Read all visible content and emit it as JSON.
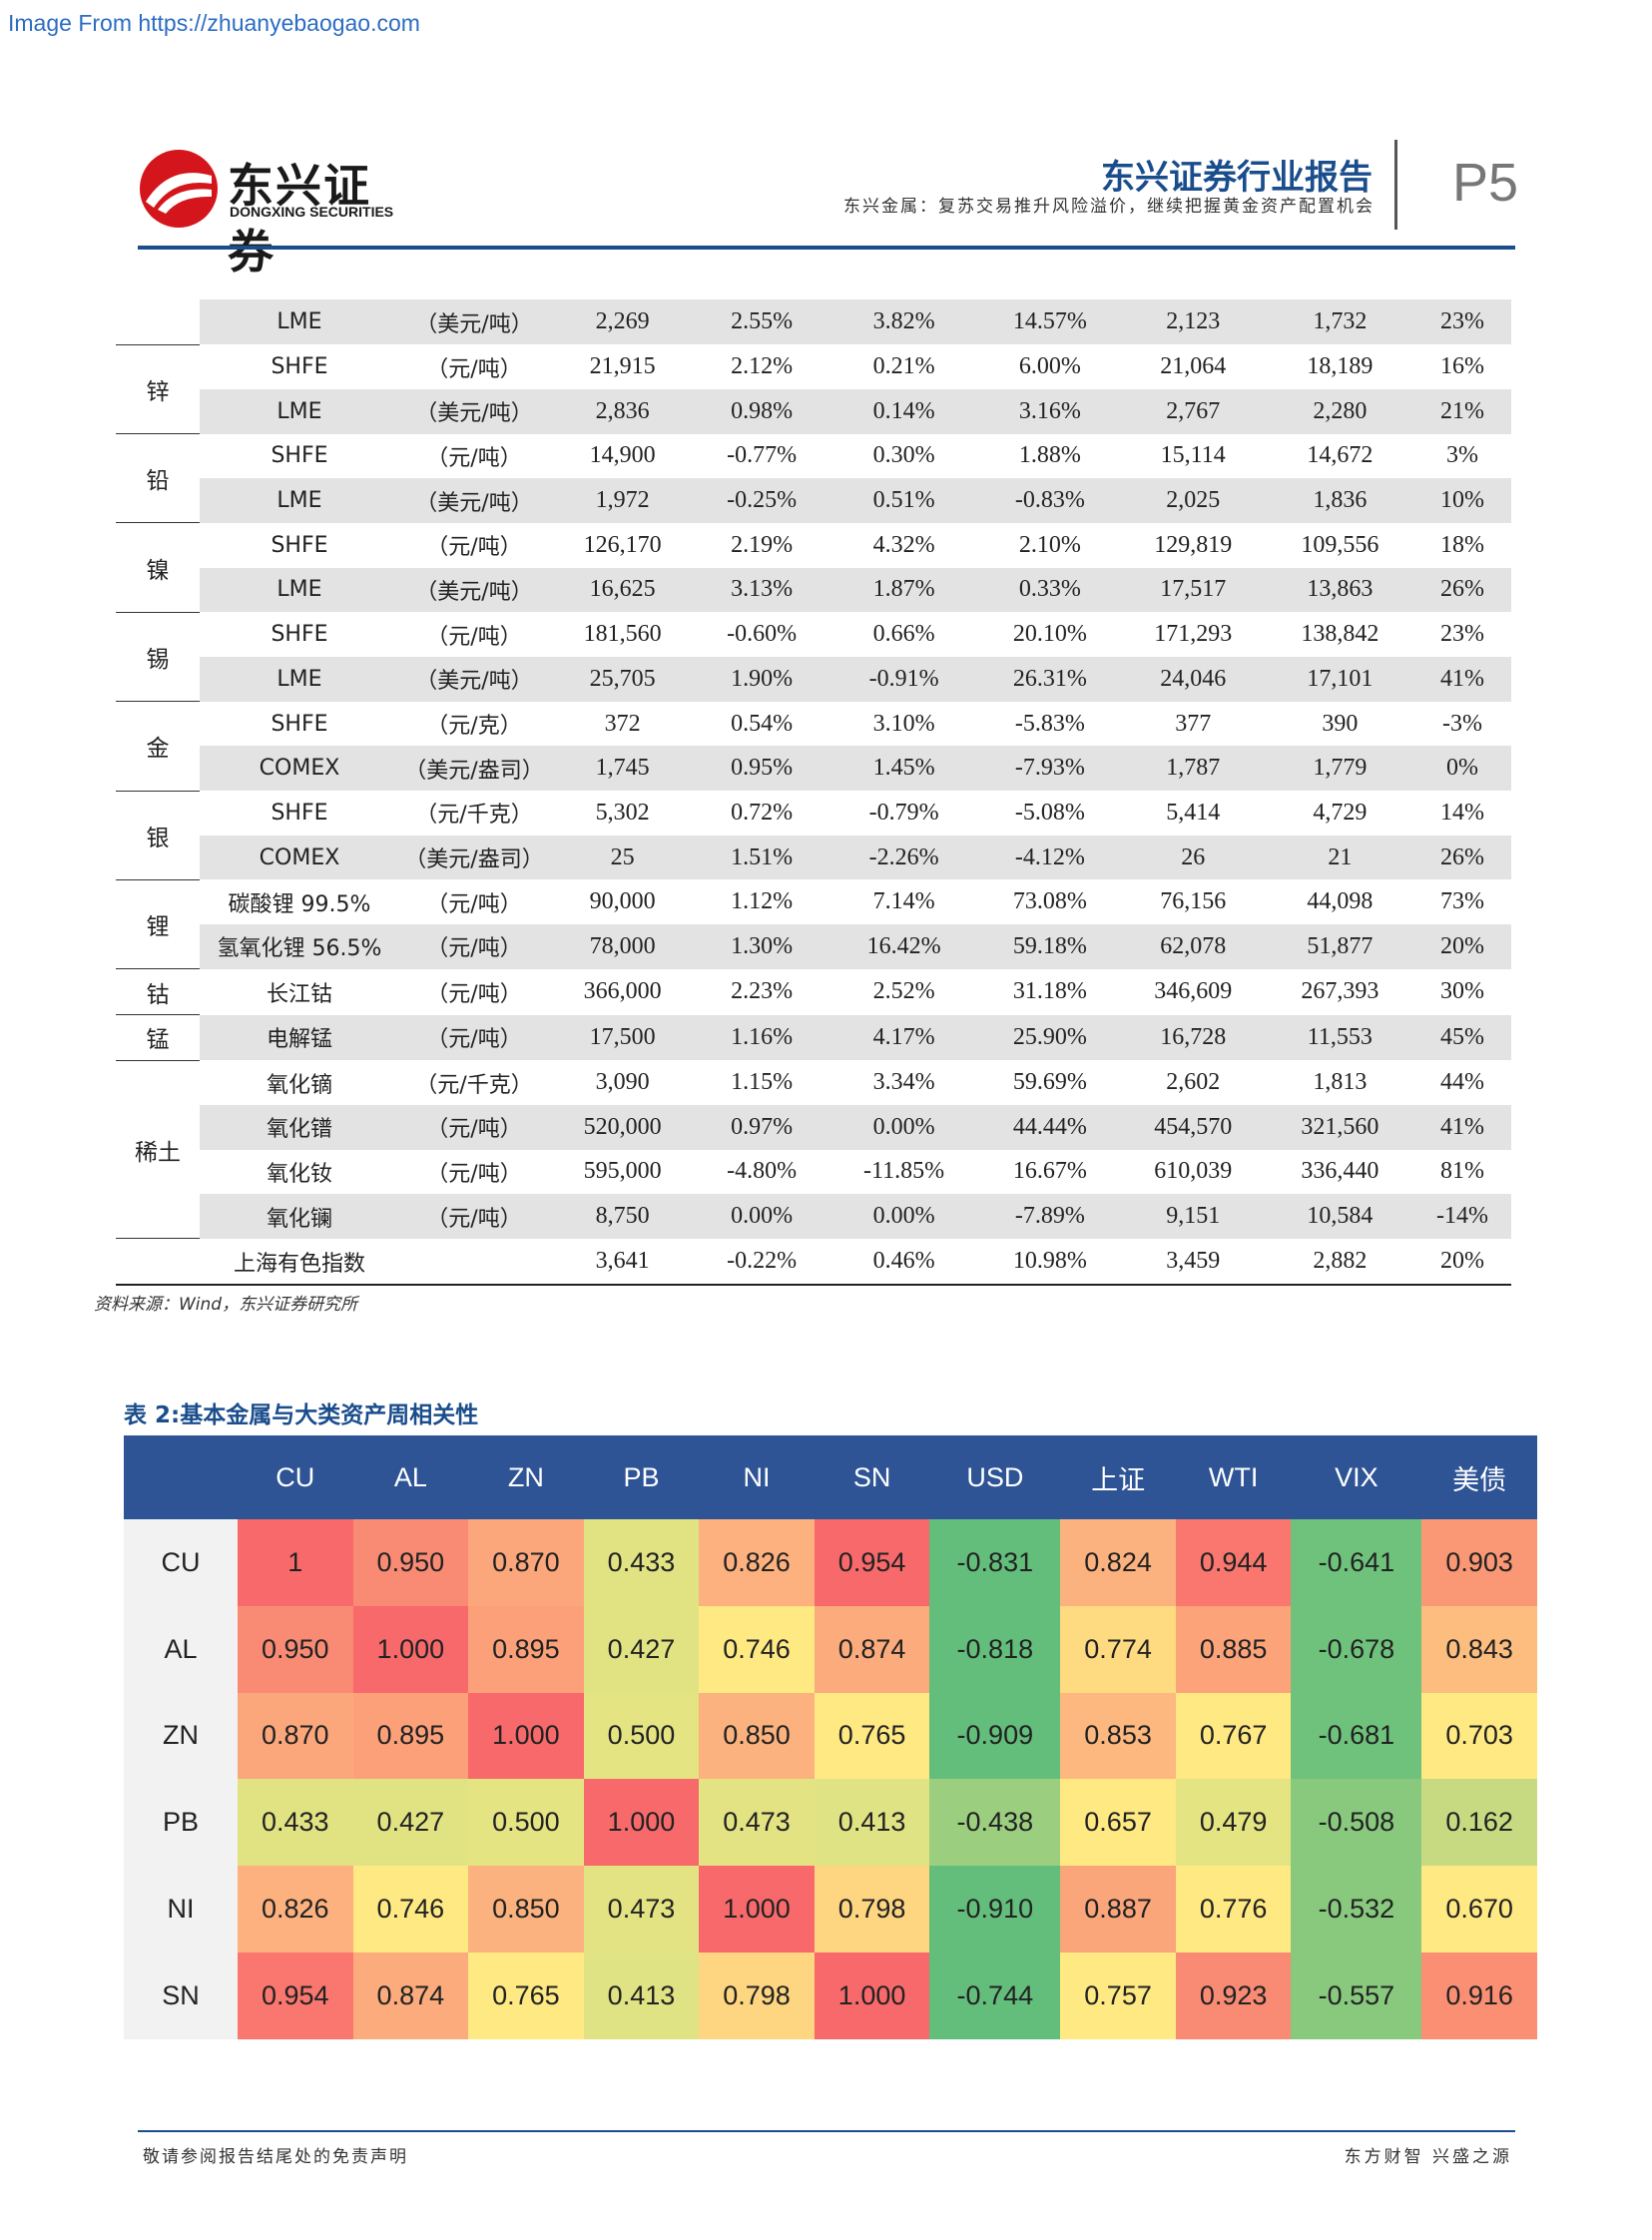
{
  "watermark": "Image From https://zhuanyebaogao.com",
  "header": {
    "logo_cn": "东兴证券",
    "logo_en": "DONGXING SECURITIES",
    "report_title": "东兴证券行业报告",
    "report_subtitle": "东兴金属：复苏交易推升风险溢价，继续把握黄金资产配置机会",
    "page_number": "P5"
  },
  "table1": {
    "groups": [
      {
        "metal": "",
        "rows": [
          [
            "LME",
            "（美元/吨）",
            "2,269",
            "2.55%",
            "3.82%",
            "14.57%",
            "2,123",
            "1,732",
            "23%"
          ]
        ]
      },
      {
        "metal": "锌",
        "rows": [
          [
            "SHFE",
            "（元/吨）",
            "21,915",
            "2.12%",
            "0.21%",
            "6.00%",
            "21,064",
            "18,189",
            "16%"
          ],
          [
            "LME",
            "（美元/吨）",
            "2,836",
            "0.98%",
            "0.14%",
            "3.16%",
            "2,767",
            "2,280",
            "21%"
          ]
        ]
      },
      {
        "metal": "铅",
        "rows": [
          [
            "SHFE",
            "（元/吨）",
            "14,900",
            "-0.77%",
            "0.30%",
            "1.88%",
            "15,114",
            "14,672",
            "3%"
          ],
          [
            "LME",
            "（美元/吨）",
            "1,972",
            "-0.25%",
            "0.51%",
            "-0.83%",
            "2,025",
            "1,836",
            "10%"
          ]
        ]
      },
      {
        "metal": "镍",
        "rows": [
          [
            "SHFE",
            "（元/吨）",
            "126,170",
            "2.19%",
            "4.32%",
            "2.10%",
            "129,819",
            "109,556",
            "18%"
          ],
          [
            "LME",
            "（美元/吨）",
            "16,625",
            "3.13%",
            "1.87%",
            "0.33%",
            "17,517",
            "13,863",
            "26%"
          ]
        ]
      },
      {
        "metal": "锡",
        "rows": [
          [
            "SHFE",
            "（元/吨）",
            "181,560",
            "-0.60%",
            "0.66%",
            "20.10%",
            "171,293",
            "138,842",
            "23%"
          ],
          [
            "LME",
            "（美元/吨）",
            "25,705",
            "1.90%",
            "-0.91%",
            "26.31%",
            "24,046",
            "17,101",
            "41%"
          ]
        ]
      },
      {
        "metal": "金",
        "rows": [
          [
            "SHFE",
            "（元/克）",
            "372",
            "0.54%",
            "3.10%",
            "-5.83%",
            "377",
            "390",
            "-3%"
          ],
          [
            "COMEX",
            "（美元/盎司）",
            "1,745",
            "0.95%",
            "1.45%",
            "-7.93%",
            "1,787",
            "1,779",
            "0%"
          ]
        ]
      },
      {
        "metal": "银",
        "rows": [
          [
            "SHFE",
            "（元/千克）",
            "5,302",
            "0.72%",
            "-0.79%",
            "-5.08%",
            "5,414",
            "4,729",
            "14%"
          ],
          [
            "COMEX",
            "（美元/盎司）",
            "25",
            "1.51%",
            "-2.26%",
            "-4.12%",
            "26",
            "21",
            "26%"
          ]
        ]
      },
      {
        "metal": "锂",
        "rows": [
          [
            "碳酸锂 99.5%",
            "（元/吨）",
            "90,000",
            "1.12%",
            "7.14%",
            "73.08%",
            "76,156",
            "44,098",
            "73%"
          ],
          [
            "氢氧化锂 56.5%",
            "（元/吨）",
            "78,000",
            "1.30%",
            "16.42%",
            "59.18%",
            "62,078",
            "51,877",
            "20%"
          ]
        ]
      },
      {
        "metal": "钴",
        "rows": [
          [
            "长江钴",
            "（元/吨）",
            "366,000",
            "2.23%",
            "2.52%",
            "31.18%",
            "346,609",
            "267,393",
            "30%"
          ]
        ]
      },
      {
        "metal": "锰",
        "rows": [
          [
            "电解锰",
            "（元/吨）",
            "17,500",
            "1.16%",
            "4.17%",
            "25.90%",
            "16,728",
            "11,553",
            "45%"
          ]
        ]
      },
      {
        "metal": "稀土",
        "rows": [
          [
            "氧化镝",
            "（元/千克）",
            "3,090",
            "1.15%",
            "3.34%",
            "59.69%",
            "2,602",
            "1,813",
            "44%"
          ],
          [
            "氧化镨",
            "（元/吨）",
            "520,000",
            "0.97%",
            "0.00%",
            "44.44%",
            "454,570",
            "321,560",
            "41%"
          ],
          [
            "氧化钕",
            "（元/吨）",
            "595,000",
            "-4.80%",
            "-11.85%",
            "16.67%",
            "610,039",
            "336,440",
            "81%"
          ],
          [
            "氧化镧",
            "（元/吨）",
            "8,750",
            "0.00%",
            "0.00%",
            "-7.89%",
            "9,151",
            "10,584",
            "-14%"
          ]
        ]
      }
    ],
    "index_row": [
      "上海有色指数",
      "",
      "3,641",
      "-0.22%",
      "0.46%",
      "10.98%",
      "3,459",
      "2,882",
      "20%"
    ],
    "source": "资料来源：Wind，东兴证券研究所"
  },
  "table2": {
    "title": "表 2:基本金属与大类资产周相关性",
    "columns": [
      "CU",
      "AL",
      "ZN",
      "PB",
      "NI",
      "SN",
      "USD",
      "上证",
      "WTI",
      "VIX",
      "美债"
    ],
    "rows": [
      {
        "label": "CU",
        "values": [
          "1",
          "0.950",
          "0.870",
          "0.433",
          "0.826",
          "0.954",
          "-0.831",
          "0.824",
          "0.944",
          "-0.641",
          "0.903"
        ],
        "colors": [
          "#f8696b",
          "#f98b74",
          "#fba77b",
          "#e1e383",
          "#fcb17e",
          "#f8696b",
          "#63be7b",
          "#fcb27e",
          "#f9776e",
          "#6fc27c",
          "#fa9774"
        ]
      },
      {
        "label": "AL",
        "values": [
          "0.950",
          "1.000",
          "0.895",
          "0.427",
          "0.746",
          "0.874",
          "-0.818",
          "0.774",
          "0.885",
          "-0.678",
          "0.843"
        ],
        "colors": [
          "#f98b74",
          "#f8696b",
          "#fca07a",
          "#e1e383",
          "#fee983",
          "#fbab7c",
          "#63be7b",
          "#feda81",
          "#fca37a",
          "#6fc27c",
          "#fcbd7f"
        ]
      },
      {
        "label": "ZN",
        "values": [
          "0.870",
          "0.895",
          "1.000",
          "0.500",
          "0.850",
          "0.765",
          "-0.909",
          "0.853",
          "0.767",
          "-0.681",
          "0.703"
        ],
        "colors": [
          "#fba77b",
          "#fca07a",
          "#f8696b",
          "#e5e483",
          "#fcb27e",
          "#fee983",
          "#63be7b",
          "#fcb87f",
          "#fee983",
          "#6fc27c",
          "#fee983"
        ]
      },
      {
        "label": "PB",
        "values": [
          "0.433",
          "0.427",
          "0.500",
          "1.000",
          "0.473",
          "0.413",
          "-0.438",
          "0.657",
          "0.479",
          "-0.508",
          "0.162"
        ],
        "colors": [
          "#e1e383",
          "#e1e383",
          "#e5e483",
          "#f8696b",
          "#e3e383",
          "#e0e383",
          "#9bcf7f",
          "#fee983",
          "#e5e483",
          "#88c97e",
          "#c8da81"
        ]
      },
      {
        "label": "NI",
        "values": [
          "0.826",
          "0.746",
          "0.850",
          "0.473",
          "1.000",
          "0.798",
          "-0.910",
          "0.887",
          "0.776",
          "-0.532",
          "0.670"
        ],
        "colors": [
          "#fcb17e",
          "#fee983",
          "#fcb27e",
          "#e3e383",
          "#f8696b",
          "#fed581",
          "#63be7b",
          "#fba57b",
          "#fee983",
          "#88c97e",
          "#fee983"
        ]
      },
      {
        "label": "SN",
        "values": [
          "0.954",
          "0.874",
          "0.765",
          "0.413",
          "0.798",
          "1.000",
          "-0.744",
          "0.757",
          "0.923",
          "-0.557",
          "0.916"
        ],
        "colors": [
          "#f9776e",
          "#fbab7c",
          "#fee983",
          "#e0e383",
          "#fed581",
          "#f8696b",
          "#63be7b",
          "#fee983",
          "#f98b74",
          "#88c97e",
          "#fa8f74"
        ]
      }
    ]
  },
  "footer": {
    "left": "敬请参阅报告结尾处的免责声明",
    "right": "东方财智 兴盛之源"
  },
  "colors": {
    "brand_blue": "#1a4d8c",
    "brand_red": "#d4161c",
    "table_header_blue": "#2e5496",
    "stripe_gray": "#e3e3e3"
  }
}
